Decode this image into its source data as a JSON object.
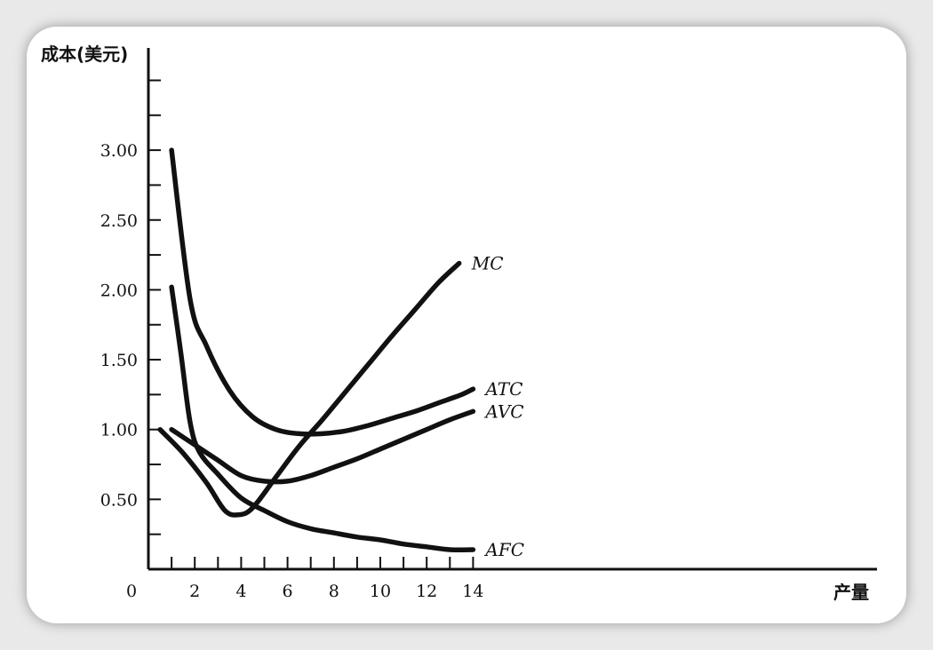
{
  "chart_data": {
    "type": "line",
    "title": "",
    "ylabel": "成本(美元)",
    "xlabel": "产量",
    "origin_label": "0",
    "xlim": [
      0,
      16
    ],
    "ylim": [
      0,
      3.75
    ],
    "x_ticks": [
      2,
      4,
      6,
      8,
      10,
      12,
      14
    ],
    "x_minor_ticks": [
      1,
      2,
      3,
      4,
      5,
      6,
      7,
      8,
      9,
      10,
      11,
      12,
      13,
      14
    ],
    "y_ticks": [
      {
        "value": 0.5,
        "label": "0.50"
      },
      {
        "value": 1.0,
        "label": "1.00"
      },
      {
        "value": 1.5,
        "label": "1.50"
      },
      {
        "value": 2.0,
        "label": "2.00"
      },
      {
        "value": 2.5,
        "label": "2.50"
      },
      {
        "value": 3.0,
        "label": "3.00"
      }
    ],
    "y_minor_ticks": [
      0.25,
      0.5,
      0.75,
      1.0,
      1.25,
      1.5,
      1.75,
      2.0,
      2.25,
      2.5,
      2.75,
      3.0,
      3.25,
      3.5
    ],
    "grid": false,
    "line_color": "#111111",
    "series": [
      {
        "name": "MC",
        "x": [
          0.5,
          1.5,
          2.5,
          3.3,
          3.9,
          4.5,
          5.5,
          6.5,
          7.5,
          8.5,
          9.5,
          10.5,
          11.5,
          12.5,
          13.4
        ],
        "y": [
          1.0,
          0.83,
          0.62,
          0.42,
          0.39,
          0.44,
          0.66,
          0.88,
          1.07,
          1.27,
          1.47,
          1.67,
          1.86,
          2.05,
          2.19
        ]
      },
      {
        "name": "ATC",
        "x": [
          1.0,
          1.8,
          2.5,
          3.5,
          4.5,
          5.5,
          6.5,
          7.5,
          8.5,
          9.5,
          10.5,
          11.5,
          12.5,
          13.5,
          14.0
        ],
        "y": [
          3.0,
          1.93,
          1.6,
          1.28,
          1.09,
          1.0,
          0.97,
          0.97,
          0.99,
          1.03,
          1.08,
          1.13,
          1.19,
          1.25,
          1.29
        ]
      },
      {
        "name": "AVC",
        "x": [
          1.0,
          2.0,
          3.0,
          4.0,
          5.0,
          6.0,
          7.0,
          8.0,
          9.0,
          10.0,
          11.0,
          12.0,
          13.0,
          14.0
        ],
        "y": [
          1.0,
          0.89,
          0.78,
          0.67,
          0.63,
          0.63,
          0.67,
          0.73,
          0.79,
          0.86,
          0.93,
          1.0,
          1.07,
          1.13
        ]
      },
      {
        "name": "AFC",
        "x": [
          1.0,
          1.4,
          1.8,
          2.2,
          3.0,
          4.0,
          5.0,
          6.0,
          7.0,
          8.0,
          9.0,
          10.0,
          11.0,
          12.0,
          13.0,
          14.0
        ],
        "y": [
          2.02,
          1.55,
          1.05,
          0.84,
          0.68,
          0.51,
          0.42,
          0.34,
          0.29,
          0.26,
          0.23,
          0.21,
          0.18,
          0.16,
          0.14,
          0.14
        ]
      }
    ]
  }
}
